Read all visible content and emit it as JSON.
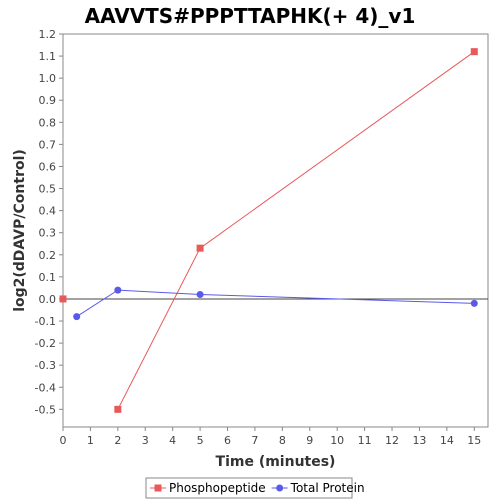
{
  "chart_data": {
    "type": "line",
    "title": "AAVVTS#PPPTTAPHK(+ 4)_v1",
    "xlabel": "Time (minutes)",
    "ylabel": "log2(dDAVP/Control)",
    "xlim": [
      0,
      15.5
    ],
    "ylim": [
      -0.58,
      1.2
    ],
    "xticks": [
      0,
      1,
      2,
      3,
      4,
      5,
      6,
      7,
      8,
      9,
      10,
      11,
      12,
      13,
      14,
      15
    ],
    "yticks": [
      -0.5,
      -0.4,
      -0.3,
      -0.2,
      -0.1,
      0.0,
      0.1,
      0.2,
      0.3,
      0.4,
      0.5,
      0.6,
      0.7,
      0.8,
      0.9,
      1.0,
      1.1,
      1.2
    ],
    "grid": false,
    "zero_line": true,
    "legend_position": "bottom",
    "series": [
      {
        "name": "Phosphopeptide",
        "color": "#e8595a",
        "marker": "square",
        "points": [
          {
            "x": 0,
            "y": 0.0,
            "connected": false
          },
          {
            "x": 2,
            "y": -0.5,
            "connected": true
          },
          {
            "x": 5,
            "y": 0.23,
            "connected": true
          },
          {
            "x": 15,
            "y": 1.12,
            "connected": true
          }
        ]
      },
      {
        "name": "Total Protein",
        "color": "#5a5ae8",
        "marker": "circle",
        "points": [
          {
            "x": 0.5,
            "y": -0.08,
            "connected": true
          },
          {
            "x": 2,
            "y": 0.04,
            "connected": true
          },
          {
            "x": 5,
            "y": 0.02,
            "connected": true
          },
          {
            "x": 15,
            "y": -0.02,
            "connected": true
          }
        ]
      }
    ]
  }
}
